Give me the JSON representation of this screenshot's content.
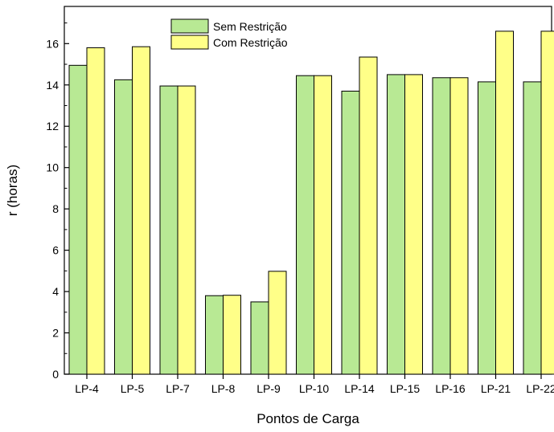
{
  "chart_data": {
    "type": "bar",
    "title": "",
    "xlabel": "Pontos de Carga",
    "ylabel": "r (horas)",
    "ylim": [
      0,
      17.8
    ],
    "yticks": [
      0,
      2,
      4,
      6,
      8,
      10,
      12,
      14,
      16
    ],
    "grid": false,
    "legend_position": "top-center",
    "categories": [
      "LP-4",
      "LP-5",
      "LP-7",
      "LP-8",
      "LP-9",
      "LP-10",
      "LP-14",
      "LP-15",
      "LP-16",
      "LP-21",
      "LP-22"
    ],
    "series": [
      {
        "name": "Sem Restrição",
        "color": "#b8e994",
        "values": [
          14.95,
          14.25,
          13.95,
          3.8,
          3.5,
          14.45,
          13.7,
          14.5,
          14.35,
          14.15,
          14.15
        ]
      },
      {
        "name": "Com Restrição",
        "color": "#ffff88",
        "values": [
          15.8,
          15.85,
          13.95,
          3.82,
          4.98,
          14.45,
          15.35,
          14.5,
          14.35,
          16.6,
          16.6
        ]
      }
    ]
  }
}
